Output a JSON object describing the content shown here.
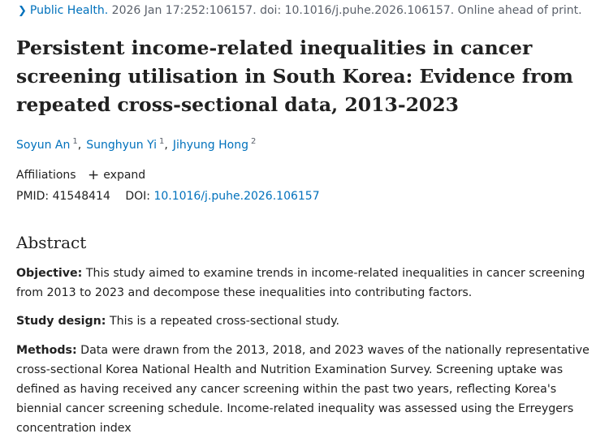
{
  "citation": {
    "journal": "Public Health.",
    "details": "2026 Jan 17:252:106157. doi: 10.1016/j.puhe.2026.106157. Online ahead of print."
  },
  "title": "Persistent income-related inequalities in cancer screening utilisation in South Korea: Evidence from repeated cross-sectional data, 2013-2023",
  "authors": [
    {
      "name": "Soyun An",
      "sup": "1"
    },
    {
      "name": "Sunghyun Yi",
      "sup": "1"
    },
    {
      "name": "Jihyung Hong",
      "sup": "2"
    }
  ],
  "affiliations": {
    "label": "Affiliations",
    "expand_label": "expand"
  },
  "ids": {
    "pmid_label": "PMID:",
    "pmid": "41548414",
    "doi_label": "DOI:",
    "doi": "10.1016/j.puhe.2026.106157"
  },
  "abstract": {
    "heading": "Abstract",
    "sections": [
      {
        "label": "Objective:",
        "text": "This study aimed to examine trends in income-related inequalities in cancer screening from 2013 to 2023 and decompose these inequalities into contributing factors."
      },
      {
        "label": "Study design:",
        "text": "This is a repeated cross-sectional study."
      },
      {
        "label": "Methods:",
        "text": "Data were drawn from the 2013, 2018, and 2023 waves of the nationally representative cross-sectional Korea National Health and Nutrition Examination Survey. Screening uptake was defined as having received any cancer screening within the past two years, reflecting Korea's biennial cancer screening schedule. Income-related inequality was assessed using the Erreygers concentration index"
      }
    ]
  },
  "colors": {
    "link": "#0071bc",
    "text": "#212121",
    "muted": "#5b616b"
  },
  "icons": [
    "chevron-right-icon",
    "plus-icon"
  ]
}
